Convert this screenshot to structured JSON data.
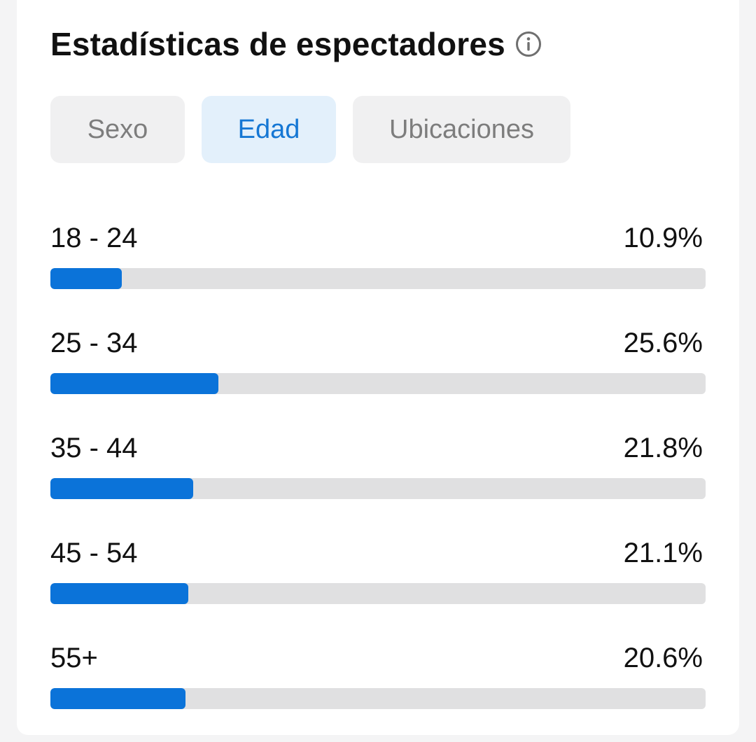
{
  "header": {
    "title": "Estadísticas de espectadores",
    "info_icon": "info-circle-icon"
  },
  "tabs": [
    {
      "label": "Sexo",
      "active": false
    },
    {
      "label": "Edad",
      "active": true
    },
    {
      "label": "Ubicaciones",
      "active": false
    }
  ],
  "age_rows": [
    {
      "label": "18 - 24",
      "value": "10.9%",
      "fraction": 0.109
    },
    {
      "label": "25 - 34",
      "value": "25.6%",
      "fraction": 0.256
    },
    {
      "label": "35 - 44",
      "value": "21.8%",
      "fraction": 0.218
    },
    {
      "label": "45 - 54",
      "value": "21.1%",
      "fraction": 0.211
    },
    {
      "label": "55+",
      "value": "20.6%",
      "fraction": 0.206
    }
  ],
  "colors": {
    "accent": "#0b73d9",
    "track": "#e0e0e1",
    "active_tab_bg": "#e3f0fb",
    "active_tab_text": "#1577d4",
    "inactive_tab_bg": "#f0f0f1",
    "inactive_tab_text": "#7d7d7d"
  }
}
